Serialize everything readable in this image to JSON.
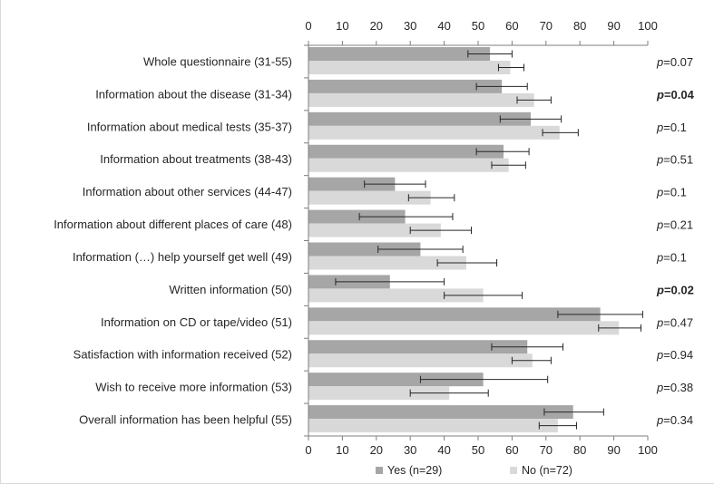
{
  "chart_data": {
    "type": "bar",
    "orientation": "horizontal",
    "categories": [
      "Whole questionnaire (31-55)",
      "Information about the disease (31-34)",
      "Information about medical tests (35-37)",
      "Information about treatments (38-43)",
      "Information about other services (44-47)",
      "Information about different places of care (48)",
      "Information (…) help yourself get well (49)",
      "Written information (50)",
      "Information on CD or tape/video (51)",
      "Satisfaction with information received (52)",
      "Wish to receive more information (53)",
      "Overall information has been helpful (55)"
    ],
    "series": [
      {
        "name": "Yes (n=29)",
        "color": "#a6a6a6",
        "values": [
          53.5,
          57,
          65.5,
          57.5,
          25.5,
          28.5,
          33,
          24,
          86,
          64.5,
          51.5,
          78
        ],
        "error_low": [
          47,
          49.5,
          56.5,
          49.5,
          16.5,
          15,
          20.5,
          8,
          73.5,
          54,
          33,
          69.5
        ],
        "error_high": [
          60,
          64.5,
          74.5,
          65,
          34.5,
          42.5,
          45.5,
          40,
          98.5,
          75,
          70.5,
          87
        ]
      },
      {
        "name": "No  (n=72)",
        "color": "#d9d9d9",
        "values": [
          59.5,
          66.5,
          74,
          59,
          36,
          39,
          46.5,
          51.5,
          91.5,
          66,
          41.5,
          73.5
        ],
        "error_low": [
          56,
          61.5,
          69,
          54,
          29.5,
          30,
          38,
          40,
          85.5,
          60,
          30,
          68
        ],
        "error_high": [
          63.5,
          71.5,
          79.5,
          64,
          43,
          48,
          55.5,
          63,
          98,
          71.5,
          53,
          79
        ]
      }
    ],
    "p_values": [
      "0.07",
      "0.04",
      "0.1",
      "0.51",
      "0.1",
      "0.21",
      "0.1",
      "0.02",
      "0.47",
      "0.94",
      "0.38",
      "0.34"
    ],
    "p_bold": [
      false,
      true,
      false,
      false,
      false,
      false,
      false,
      true,
      false,
      false,
      false,
      false
    ],
    "p_label": "p",
    "xlim": [
      0,
      100
    ],
    "xticks": [
      0,
      10,
      20,
      30,
      40,
      50,
      60,
      70,
      80,
      90,
      100
    ],
    "xlabel": "",
    "ylabel": "",
    "title": "",
    "grid": false,
    "legend_position": "bottom"
  }
}
